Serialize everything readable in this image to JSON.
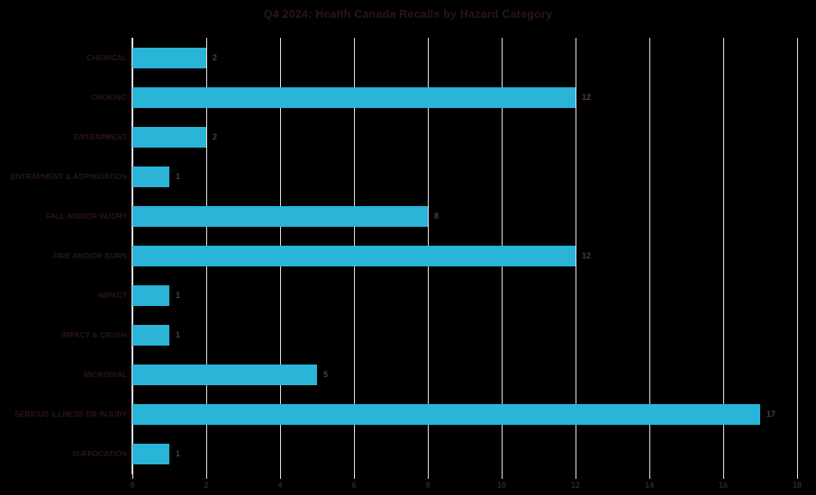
{
  "title": "Q4 2024: Health Canada Recalls by Hazard Category",
  "colors": {
    "background": "#000000",
    "bar": "#29b4d8",
    "gridline": "#e8dbe1",
    "title_text": "#2a151c",
    "category_text": "#2a151c",
    "value_text": "#5a3944",
    "tick_text": "#3a2027"
  },
  "chart_data": {
    "type": "bar",
    "orientation": "horizontal",
    "title": "Q4 2024: Health Canada Recalls by Hazard Category",
    "categories": [
      "CHEMICAL",
      "CHOKING",
      "ENTRAPMENT",
      "ENTRAPMENT & ASPHIXIATION",
      "FALL AND/OR INJURY",
      "FIRE AND/OR BURN",
      "IMPACT",
      "IMPACT & CRUSH",
      "MICROBIAL",
      "SERIOUS ILLNESS OR INJURY",
      "SUFFOCATION"
    ],
    "values": [
      2,
      12,
      2,
      1,
      8,
      12,
      1,
      1,
      5,
      17,
      1
    ],
    "data_labels": [
      2,
      12,
      2,
      1,
      8,
      12,
      1,
      1,
      5,
      17,
      1
    ],
    "xlabel": "",
    "ylabel": "",
    "xlim": [
      0,
      18
    ],
    "xticks": [
      0,
      2,
      4,
      6,
      8,
      10,
      12,
      14,
      16,
      18
    ],
    "grid": true,
    "legend": false
  }
}
